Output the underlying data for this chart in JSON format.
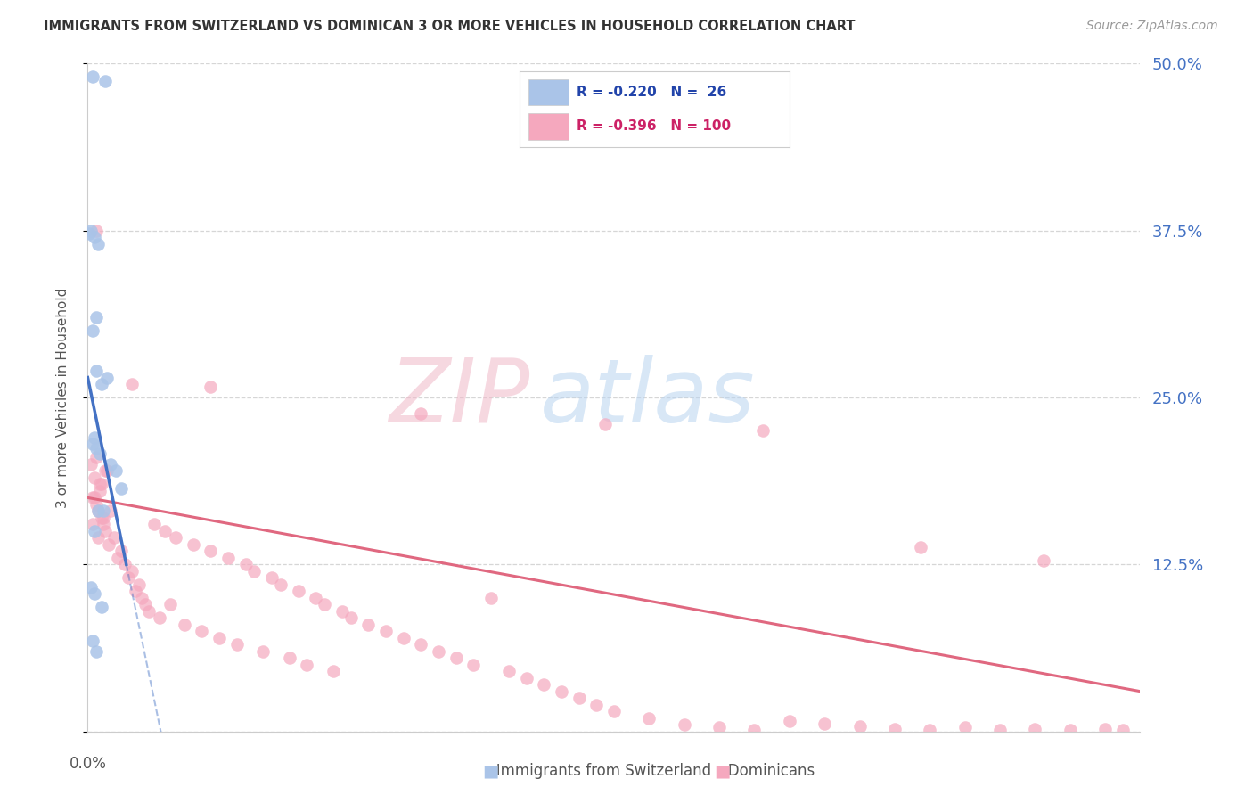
{
  "title": "IMMIGRANTS FROM SWITZERLAND VS DOMINICAN 3 OR MORE VEHICLES IN HOUSEHOLD CORRELATION CHART",
  "source": "Source: ZipAtlas.com",
  "ylabel": "3 or more Vehicles in Household",
  "xlim": [
    0.0,
    0.6
  ],
  "ylim": [
    0.0,
    0.5
  ],
  "legend_r1": "R = -0.220",
  "legend_n1": "N =  26",
  "legend_r2": "R = -0.396",
  "legend_n2": "N = 100",
  "legend_label1": "Immigrants from Switzerland",
  "legend_label2": "Dominicans",
  "color_swiss": "#aac4e8",
  "color_dominican": "#f5a8be",
  "color_line_swiss": "#4472c4",
  "color_line_dominican": "#e06880",
  "watermark_zip": "ZIP",
  "watermark_atlas": "atlas",
  "swiss_x": [
    0.003,
    0.01,
    0.002,
    0.001,
    0.004,
    0.006,
    0.005,
    0.003,
    0.005,
    0.008,
    0.011,
    0.004,
    0.003,
    0.005,
    0.007,
    0.013,
    0.016,
    0.019,
    0.002,
    0.004,
    0.003,
    0.006,
    0.009,
    0.004,
    0.008,
    0.005
  ],
  "swiss_y": [
    0.49,
    0.487,
    0.375,
    0.373,
    0.37,
    0.365,
    0.31,
    0.3,
    0.27,
    0.26,
    0.265,
    0.22,
    0.215,
    0.212,
    0.208,
    0.2,
    0.195,
    0.182,
    0.108,
    0.103,
    0.068,
    0.165,
    0.165,
    0.15,
    0.093,
    0.06
  ],
  "dom_x_clusters": [
    [
      0.002,
      0.003,
      0.004,
      0.005,
      0.006,
      0.007,
      0.008,
      0.009,
      0.01,
      0.003,
      0.005,
      0.006,
      0.008,
      0.01,
      0.012,
      0.004,
      0.007,
      0.009,
      0.011,
      0.013,
      0.015,
      0.017,
      0.019,
      0.021,
      0.023,
      0.025,
      0.027,
      0.029,
      0.031,
      0.033
    ],
    [
      0.035,
      0.038,
      0.041,
      0.044,
      0.047,
      0.05,
      0.055,
      0.06,
      0.065,
      0.07,
      0.075,
      0.08,
      0.085,
      0.09,
      0.095,
      0.1,
      0.105,
      0.11,
      0.115,
      0.12,
      0.125,
      0.13,
      0.135,
      0.14,
      0.145
    ],
    [
      0.15,
      0.16,
      0.17,
      0.18,
      0.19,
      0.2,
      0.21,
      0.22,
      0.23,
      0.24,
      0.25,
      0.26,
      0.27,
      0.28,
      0.29,
      0.3
    ],
    [
      0.32,
      0.34,
      0.36,
      0.38,
      0.4,
      0.42,
      0.44,
      0.46,
      0.48,
      0.5,
      0.52,
      0.54,
      0.56,
      0.58,
      0.59
    ]
  ],
  "dom_y_clusters": [
    [
      0.2,
      0.175,
      0.19,
      0.205,
      0.165,
      0.18,
      0.185,
      0.16,
      0.195,
      0.155,
      0.17,
      0.145,
      0.16,
      0.15,
      0.14,
      0.175,
      0.185,
      0.155,
      0.195,
      0.165,
      0.145,
      0.13,
      0.135,
      0.125,
      0.115,
      0.12,
      0.105,
      0.11,
      0.1,
      0.095
    ],
    [
      0.09,
      0.155,
      0.085,
      0.15,
      0.095,
      0.145,
      0.08,
      0.14,
      0.075,
      0.135,
      0.07,
      0.13,
      0.065,
      0.125,
      0.12,
      0.06,
      0.115,
      0.11,
      0.055,
      0.105,
      0.05,
      0.1,
      0.095,
      0.045,
      0.09
    ],
    [
      0.085,
      0.08,
      0.075,
      0.07,
      0.065,
      0.06,
      0.055,
      0.05,
      0.1,
      0.045,
      0.04,
      0.035,
      0.03,
      0.025,
      0.02,
      0.015
    ],
    [
      0.01,
      0.005,
      0.003,
      0.001,
      0.008,
      0.006,
      0.004,
      0.002,
      0.001,
      0.003,
      0.001,
      0.002,
      0.001,
      0.002,
      0.001
    ]
  ],
  "dom_outliers_x": [
    0.005,
    0.025,
    0.07,
    0.19,
    0.295,
    0.385,
    0.475,
    0.545
  ],
  "dom_outliers_y": [
    0.375,
    0.26,
    0.258,
    0.238,
    0.23,
    0.225,
    0.138,
    0.128
  ],
  "blue_line_x0": 0.0,
  "blue_line_y0": 0.265,
  "blue_line_x1": 0.022,
  "blue_line_y1": 0.125,
  "pink_line_x0": 0.0,
  "pink_line_y0": 0.175,
  "pink_line_x1": 0.6,
  "pink_line_y1": 0.03
}
